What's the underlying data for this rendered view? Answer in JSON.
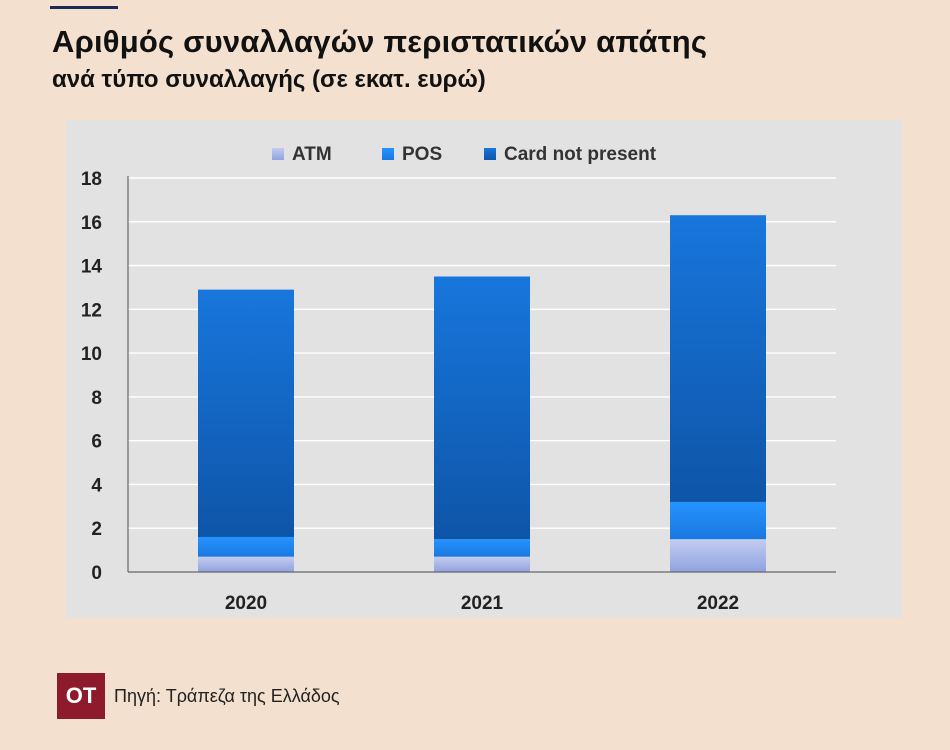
{
  "header": {
    "title": "Αριθμός συναλλαγών περιστατικών απάτης",
    "subtitle": "ανά τύπο συναλλαγής (σε εκατ. ευρώ)"
  },
  "footer": {
    "logo_text": "OT",
    "source": "Πηγή: Τράπεζα της Ελλάδος"
  },
  "chart_data": {
    "type": "bar",
    "stacked": true,
    "categories": [
      "2020",
      "2021",
      "2022"
    ],
    "series": [
      {
        "name": "ATM",
        "values": [
          0.7,
          0.7,
          1.5
        ],
        "color": "#a9b8e8"
      },
      {
        "name": "POS",
        "values": [
          0.9,
          0.8,
          1.7
        ],
        "color": "#1e88f0"
      },
      {
        "name": "Card not present",
        "values": [
          11.3,
          12.0,
          13.1
        ],
        "color": "#1565c8"
      }
    ],
    "ylim": [
      0,
      18
    ],
    "yticks": [
      0,
      2,
      4,
      6,
      8,
      10,
      12,
      14,
      16,
      18
    ],
    "grid": true,
    "legend": "top",
    "title": "",
    "xlabel": "",
    "ylabel": ""
  }
}
